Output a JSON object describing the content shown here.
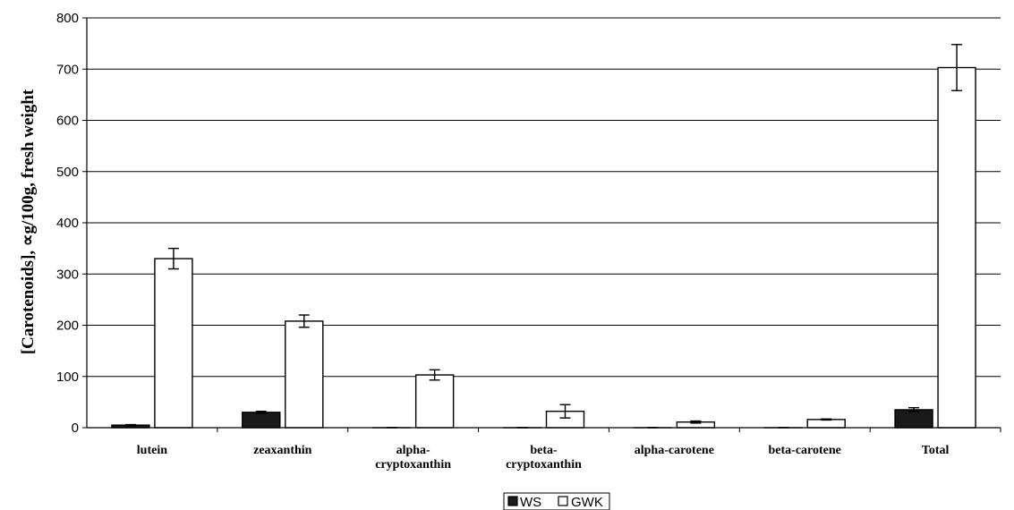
{
  "chart_data": {
    "type": "bar",
    "title": "",
    "xlabel": "",
    "ylabel": "[Carotenoids], ∝g/100g, fresh weight",
    "ylim": [
      0,
      800
    ],
    "yticks": [
      0,
      100,
      200,
      300,
      400,
      500,
      600,
      700,
      800
    ],
    "grid": true,
    "legend_position": "bottom-center",
    "categories": [
      [
        "lutein"
      ],
      [
        "zeaxanthin"
      ],
      [
        "alpha-",
        "cryptoxanthin"
      ],
      [
        "beta-",
        "cryptoxanthin"
      ],
      [
        "alpha-carotene"
      ],
      [
        "beta-carotene"
      ],
      [
        "Total"
      ]
    ],
    "series": [
      {
        "name": "WS",
        "color": "#1a1a1a",
        "values": [
          5,
          30,
          0,
          0,
          0,
          0,
          35
        ],
        "errors": [
          1,
          2,
          0.3,
          0.3,
          0.3,
          0.3,
          4
        ]
      },
      {
        "name": "GWK",
        "color": "#ffffff",
        "values": [
          330,
          208,
          103,
          32,
          11,
          16,
          703
        ],
        "errors": [
          20,
          12,
          10,
          13,
          2,
          1,
          45
        ]
      }
    ]
  }
}
